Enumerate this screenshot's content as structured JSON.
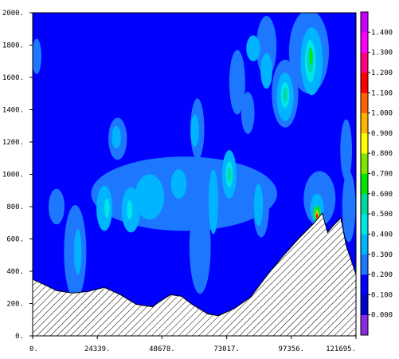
{
  "chart_data": {
    "type": "contour",
    "title": "",
    "xlabel": "",
    "ylabel": "",
    "xlim": [
      0,
      121695
    ],
    "ylim": [
      0,
      2000
    ],
    "x_ticks": [
      0,
      24339,
      48678,
      73017,
      97356,
      121695
    ],
    "x_tick_labels": [
      "0.",
      "24339.",
      "48678.",
      "73017.",
      "97356.",
      "121695."
    ],
    "y_ticks": [
      0,
      200,
      400,
      600,
      800,
      1000,
      1200,
      1400,
      1600,
      1800,
      2000
    ],
    "y_tick_labels": [
      "0.",
      "200.",
      "400.",
      "600.",
      "800.",
      "1000.",
      "1200.",
      "1400.",
      "1600.",
      "1800.",
      "2000."
    ],
    "background_color": "#0000ff",
    "terrain": {
      "fill": "hatched",
      "profile": [
        {
          "x": 0,
          "y": 350
        },
        {
          "x": 4000,
          "y": 320
        },
        {
          "x": 9000,
          "y": 280
        },
        {
          "x": 15000,
          "y": 265
        },
        {
          "x": 21000,
          "y": 275
        },
        {
          "x": 27000,
          "y": 300
        },
        {
          "x": 33000,
          "y": 255
        },
        {
          "x": 39000,
          "y": 195
        },
        {
          "x": 45000,
          "y": 180
        },
        {
          "x": 49000,
          "y": 225
        },
        {
          "x": 52000,
          "y": 255
        },
        {
          "x": 56000,
          "y": 245
        },
        {
          "x": 60000,
          "y": 195
        },
        {
          "x": 66000,
          "y": 135
        },
        {
          "x": 70000,
          "y": 125
        },
        {
          "x": 76000,
          "y": 170
        },
        {
          "x": 82000,
          "y": 240
        },
        {
          "x": 88000,
          "y": 370
        },
        {
          "x": 94000,
          "y": 490
        },
        {
          "x": 100000,
          "y": 600
        },
        {
          "x": 106000,
          "y": 700
        },
        {
          "x": 109000,
          "y": 760
        },
        {
          "x": 111000,
          "y": 640
        },
        {
          "x": 113000,
          "y": 680
        },
        {
          "x": 116000,
          "y": 730
        },
        {
          "x": 118000,
          "y": 560
        },
        {
          "x": 121695,
          "y": 380
        }
      ]
    },
    "colorbar": {
      "labels": [
        "0.000",
        "0.100",
        "0.200",
        "0.300",
        "0.400",
        "0.500",
        "0.600",
        "0.700",
        "0.800",
        "0.900",
        "1.000",
        "1.100",
        "1.200",
        "1.300",
        "1.400"
      ],
      "colors": [
        "#8a2be2",
        "#0000c8",
        "#0000ff",
        "#1e78ff",
        "#00b4ff",
        "#00e6e6",
        "#00d8a0",
        "#00e600",
        "#7fe600",
        "#ffff00",
        "#ffb400",
        "#ff6400",
        "#ff0000",
        "#ff0080",
        "#ff00ff",
        "#c800ff"
      ]
    },
    "features": [
      {
        "level": 0.3,
        "color": "#1e78ff",
        "cx": 1500,
        "cy": 1730,
        "rx": 1800,
        "ry": 110
      },
      {
        "level": 0.3,
        "color": "#1e78ff",
        "cx": 88000,
        "cy": 1790,
        "rx": 3800,
        "ry": 190
      },
      {
        "level": 0.3,
        "color": "#1e78ff",
        "cx": 104000,
        "cy": 1760,
        "rx": 7500,
        "ry": 260
      },
      {
        "level": 0.3,
        "color": "#1e78ff",
        "cx": 95000,
        "cy": 1500,
        "rx": 5000,
        "ry": 210
      },
      {
        "level": 0.3,
        "color": "#1e78ff",
        "cx": 77000,
        "cy": 1570,
        "rx": 3000,
        "ry": 200
      },
      {
        "level": 0.3,
        "color": "#1e78ff",
        "cx": 81000,
        "cy": 1380,
        "rx": 2500,
        "ry": 130
      },
      {
        "level": 0.3,
        "color": "#1e78ff",
        "cx": 32000,
        "cy": 1220,
        "rx": 3500,
        "ry": 130
      },
      {
        "level": 0.3,
        "color": "#1e78ff",
        "cx": 62000,
        "cy": 1280,
        "rx": 2600,
        "ry": 190
      },
      {
        "level": 0.3,
        "color": "#1e78ff",
        "cx": 118000,
        "cy": 1150,
        "rx": 2200,
        "ry": 190
      },
      {
        "level": 0.3,
        "color": "#1e78ff",
        "cx": 57000,
        "cy": 880,
        "rx": 35000,
        "ry": 230
      },
      {
        "level": 0.3,
        "color": "#1e78ff",
        "cx": 9000,
        "cy": 800,
        "rx": 3000,
        "ry": 110
      },
      {
        "level": 0.3,
        "color": "#1e78ff",
        "cx": 16000,
        "cy": 520,
        "rx": 4200,
        "ry": 290
      },
      {
        "level": 0.3,
        "color": "#1e78ff",
        "cx": 63000,
        "cy": 550,
        "rx": 4000,
        "ry": 290
      },
      {
        "level": 0.3,
        "color": "#1e78ff",
        "cx": 86000,
        "cy": 800,
        "rx": 3000,
        "ry": 190
      },
      {
        "level": 0.3,
        "color": "#1e78ff",
        "cx": 108000,
        "cy": 850,
        "rx": 6000,
        "ry": 170
      },
      {
        "level": 0.3,
        "color": "#1e78ff",
        "cx": 119000,
        "cy": 800,
        "rx": 2500,
        "ry": 220
      },
      {
        "level": 0.4,
        "color": "#00b4ff",
        "cx": 83000,
        "cy": 1780,
        "rx": 2600,
        "ry": 80
      },
      {
        "level": 0.4,
        "color": "#00b4ff",
        "cx": 105000,
        "cy": 1700,
        "rx": 4200,
        "ry": 210
      },
      {
        "level": 0.4,
        "color": "#00b4ff",
        "cx": 95000,
        "cy": 1480,
        "rx": 3200,
        "ry": 150
      },
      {
        "level": 0.4,
        "color": "#00b4ff",
        "cx": 88000,
        "cy": 1640,
        "rx": 2200,
        "ry": 110
      },
      {
        "level": 0.4,
        "color": "#00b4ff",
        "cx": 31500,
        "cy": 1230,
        "rx": 1700,
        "ry": 70
      },
      {
        "level": 0.4,
        "color": "#00b4ff",
        "cx": 61000,
        "cy": 1270,
        "rx": 1600,
        "ry": 100
      },
      {
        "level": 0.4,
        "color": "#00b4ff",
        "cx": 27000,
        "cy": 790,
        "rx": 3000,
        "ry": 140
      },
      {
        "level": 0.4,
        "color": "#00b4ff",
        "cx": 37000,
        "cy": 780,
        "rx": 3500,
        "ry": 140
      },
      {
        "level": 0.4,
        "color": "#00b4ff",
        "cx": 44000,
        "cy": 860,
        "rx": 5500,
        "ry": 140
      },
      {
        "level": 0.4,
        "color": "#00b4ff",
        "cx": 55000,
        "cy": 940,
        "rx": 3000,
        "ry": 90
      },
      {
        "level": 0.4,
        "color": "#00b4ff",
        "cx": 74000,
        "cy": 1000,
        "rx": 2700,
        "ry": 150
      },
      {
        "level": 0.4,
        "color": "#00b4ff",
        "cx": 68000,
        "cy": 830,
        "rx": 1800,
        "ry": 200
      },
      {
        "level": 0.4,
        "color": "#00b4ff",
        "cx": 85000,
        "cy": 810,
        "rx": 1700,
        "ry": 130
      },
      {
        "level": 0.4,
        "color": "#00b4ff",
        "cx": 17000,
        "cy": 520,
        "rx": 1400,
        "ry": 140
      },
      {
        "level": 0.4,
        "color": "#00b4ff",
        "cx": 107000,
        "cy": 790,
        "rx": 2500,
        "ry": 90
      },
      {
        "level": 0.5,
        "color": "#00e6e6",
        "cx": 104500,
        "cy": 1700,
        "rx": 2000,
        "ry": 130
      },
      {
        "level": 0.5,
        "color": "#00e6e6",
        "cx": 95000,
        "cy": 1490,
        "rx": 1600,
        "ry": 80
      },
      {
        "level": 0.5,
        "color": "#00e6e6",
        "cx": 74000,
        "cy": 1000,
        "rx": 1300,
        "ry": 80
      },
      {
        "level": 0.5,
        "color": "#00e6e6",
        "cx": 28000,
        "cy": 790,
        "rx": 1000,
        "ry": 60
      },
      {
        "level": 0.5,
        "color": "#00e6e6",
        "cx": 36500,
        "cy": 780,
        "rx": 1000,
        "ry": 60
      },
      {
        "level": 0.6,
        "color": "#00d8a0",
        "cx": 104500,
        "cy": 1710,
        "rx": 1100,
        "ry": 80
      },
      {
        "level": 0.6,
        "color": "#00d8a0",
        "cx": 95000,
        "cy": 1490,
        "rx": 800,
        "ry": 45
      },
      {
        "level": 0.6,
        "color": "#00d8a0",
        "cx": 74000,
        "cy": 1000,
        "rx": 700,
        "ry": 45
      },
      {
        "level": 0.6,
        "color": "#00d8a0",
        "cx": 107000,
        "cy": 760,
        "rx": 1500,
        "ry": 50
      },
      {
        "level": 0.7,
        "color": "#00e600",
        "cx": 104800,
        "cy": 1730,
        "rx": 550,
        "ry": 45
      },
      {
        "level": 0.7,
        "color": "#00e600",
        "cx": 107000,
        "cy": 760,
        "rx": 1000,
        "ry": 38
      },
      {
        "level": 0.8,
        "color": "#7fe600",
        "cx": 107000,
        "cy": 755,
        "rx": 700,
        "ry": 30
      },
      {
        "level": 1.0,
        "color": "#ffb400",
        "cx": 107000,
        "cy": 748,
        "rx": 500,
        "ry": 22
      },
      {
        "level": 1.2,
        "color": "#ff0000",
        "cx": 107000,
        "cy": 742,
        "rx": 300,
        "ry": 16
      }
    ]
  }
}
